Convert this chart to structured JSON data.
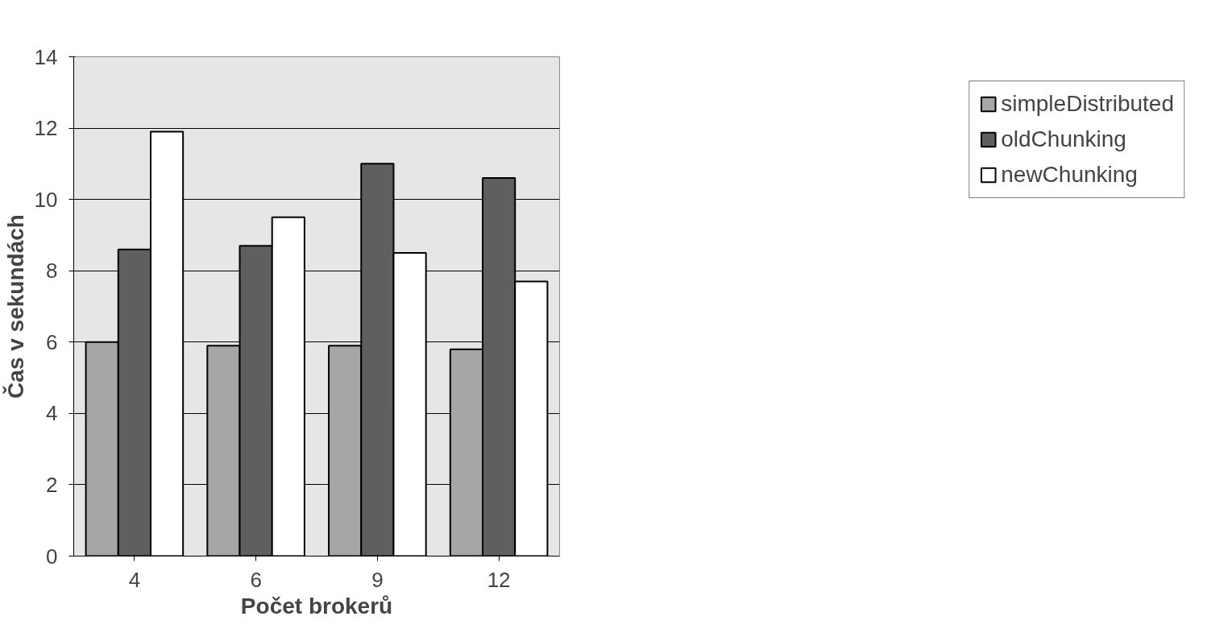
{
  "chart_data": {
    "type": "bar",
    "xlabel": "Počet brokerů",
    "ylabel": "Čas v sekundách",
    "categories": [
      "4",
      "6",
      "9",
      "12"
    ],
    "series": [
      {
        "name": "simpleDistributed",
        "color": "#a6a6a6",
        "values": [
          6.0,
          5.9,
          5.9,
          5.8
        ]
      },
      {
        "name": "oldChunking",
        "color": "#5f5f5f",
        "values": [
          8.6,
          8.7,
          11.0,
          10.6
        ]
      },
      {
        "name": "newChunking",
        "color": "#ffffff",
        "values": [
          11.9,
          9.5,
          8.5,
          7.7
        ]
      }
    ],
    "ylim": [
      0,
      14
    ],
    "yticks": [
      0,
      2,
      4,
      6,
      8,
      10,
      12,
      14
    ],
    "grid": "y",
    "legend": "right"
  }
}
